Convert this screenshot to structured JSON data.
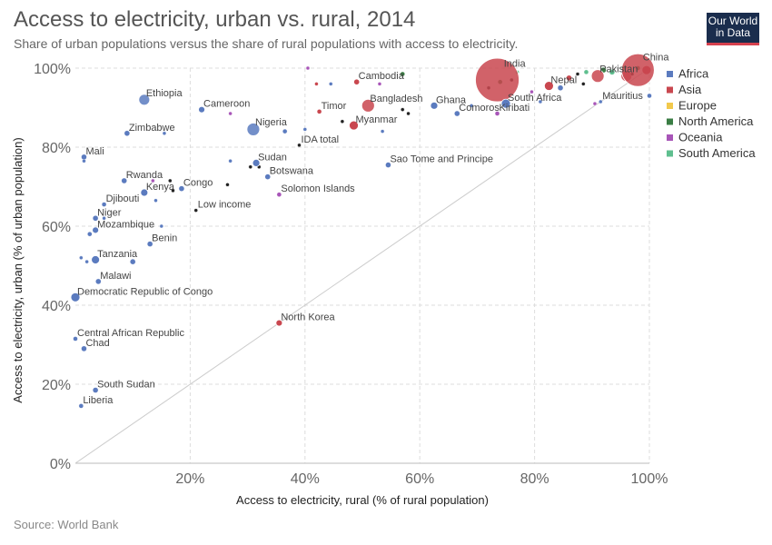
{
  "header": {
    "title": "Access to electricity, urban vs. rural, 2014",
    "subtitle": "Share of urban populations versus the share of rural populations with access to electricity.",
    "logo_line1": "Our World",
    "logo_line2": "in Data"
  },
  "footer": {
    "source": "Source: World Bank"
  },
  "colors": {
    "Africa": "#5b7bbf",
    "Asia": "#c9474f",
    "Europe": "#f2c94c",
    "North America": "#3a7d44",
    "Oceania": "#a855b8",
    "South America": "#5fbf8f",
    "aggregate": "#222222",
    "grid": "#dddddd",
    "diagonal": "#cccccc"
  },
  "chart_data": {
    "type": "scatter",
    "xlabel": "Access to electricity, rural (% of rural population)",
    "ylabel": "Access to electricity, urban (% of urban population)",
    "xlim": [
      0,
      100
    ],
    "ylim": [
      0,
      100
    ],
    "x_ticks": [
      "20%",
      "40%",
      "60%",
      "80%",
      "100%"
    ],
    "y_ticks": [
      "0%",
      "20%",
      "40%",
      "60%",
      "80%",
      "100%"
    ],
    "grid": true,
    "legend_position": "right",
    "legend": [
      "Africa",
      "Asia",
      "Europe",
      "North America",
      "Oceania",
      "South America"
    ],
    "points": [
      {
        "name": "Ethiopia",
        "region": "Africa",
        "x": 12,
        "y": 92,
        "r": 6
      },
      {
        "name": "Cameroon",
        "region": "Africa",
        "x": 22,
        "y": 89.5,
        "r": 3.5
      },
      {
        "name": "Zimbabwe",
        "region": "Africa",
        "x": 9,
        "y": 83.5,
        "r": 3
      },
      {
        "name": "Nigeria",
        "region": "Africa",
        "x": 31,
        "y": 84.5,
        "r": 7
      },
      {
        "name": "IDA total",
        "region": "aggregate",
        "x": 39,
        "y": 80.5,
        "r": 2
      },
      {
        "name": "Mali",
        "region": "Africa",
        "x": 1.5,
        "y": 77.5,
        "r": 3
      },
      {
        "name": "Sudan",
        "region": "Africa",
        "x": 31.5,
        "y": 76,
        "r": 4
      },
      {
        "name": "Botswana",
        "region": "Africa",
        "x": 33.5,
        "y": 72.5,
        "r": 3
      },
      {
        "name": "Rwanda",
        "region": "Africa",
        "x": 8.5,
        "y": 71.5,
        "r": 3
      },
      {
        "name": "Congo",
        "region": "Africa",
        "x": 18.5,
        "y": 69.5,
        "r": 3
      },
      {
        "name": "Kenya",
        "region": "Africa",
        "x": 12,
        "y": 68.5,
        "r": 4
      },
      {
        "name": "Solomon Islands",
        "region": "Oceania",
        "x": 35.5,
        "y": 68,
        "r": 2.5
      },
      {
        "name": "Djibouti",
        "region": "Africa",
        "x": 5,
        "y": 65.5,
        "r": 2.5
      },
      {
        "name": "Low income",
        "region": "aggregate",
        "x": 21,
        "y": 64,
        "r": 2
      },
      {
        "name": "Niger",
        "region": "Africa",
        "x": 3.5,
        "y": 62,
        "r": 3
      },
      {
        "name": "Mozambique",
        "region": "Africa",
        "x": 3.5,
        "y": 59,
        "r": 3.5
      },
      {
        "name": "Benin",
        "region": "Africa",
        "x": 13,
        "y": 55.5,
        "r": 3
      },
      {
        "name": "Tanzania",
        "region": "Africa",
        "x": 3.5,
        "y": 51.5,
        "r": 4.5
      },
      {
        "name": "Malawi",
        "region": "Africa",
        "x": 4,
        "y": 46,
        "r": 3
      },
      {
        "name": "Democratic Republic of Congo",
        "region": "Africa",
        "x": 0,
        "y": 42,
        "r": 5
      },
      {
        "name": "North Korea",
        "region": "Asia",
        "x": 35.5,
        "y": 35.5,
        "r": 3.5
      },
      {
        "name": "Central African Republic",
        "region": "Africa",
        "x": 0,
        "y": 31.5,
        "r": 2.5
      },
      {
        "name": "Chad",
        "region": "Africa",
        "x": 1.5,
        "y": 29,
        "r": 3
      },
      {
        "name": "South Sudan",
        "region": "Africa",
        "x": 3.5,
        "y": 18.5,
        "r": 3
      },
      {
        "name": "Liberia",
        "region": "Africa",
        "x": 1,
        "y": 14.5,
        "r": 2.5
      },
      {
        "name": "Cambodia",
        "region": "Asia",
        "x": 49,
        "y": 96.5,
        "r": 3
      },
      {
        "name": "Timor",
        "region": "Asia",
        "x": 42.5,
        "y": 89,
        "r": 2.5
      },
      {
        "name": "Bangladesh",
        "region": "Asia",
        "x": 51,
        "y": 90.5,
        "r": 7
      },
      {
        "name": "Myanmar",
        "region": "Asia",
        "x": 48.5,
        "y": 85.5,
        "r": 5
      },
      {
        "name": "Sao Tome and Principe",
        "region": "Africa",
        "x": 54.5,
        "y": 75.5,
        "r": 3
      },
      {
        "name": "Ghana",
        "region": "Africa",
        "x": 62.5,
        "y": 90.5,
        "r": 4
      },
      {
        "name": "Comoros",
        "region": "Africa",
        "x": 66.5,
        "y": 88.5,
        "r": 3
      },
      {
        "name": "Kiribati",
        "region": "Oceania",
        "x": 73.5,
        "y": 88.5,
        "r": 2.5
      },
      {
        "name": "India",
        "region": "Asia",
        "x": 73.5,
        "y": 97,
        "r": 24
      },
      {
        "name": "South Africa",
        "region": "Africa",
        "x": 75,
        "y": 91,
        "r": 5
      },
      {
        "name": "Nepal",
        "region": "Asia",
        "x": 82.5,
        "y": 95.5,
        "r": 5
      },
      {
        "name": "Pakistan",
        "region": "Asia",
        "x": 91,
        "y": 98,
        "r": 7
      },
      {
        "name": "China",
        "region": "Asia",
        "x": 98,
        "y": 99.5,
        "r": 18
      },
      {
        "name": "Mauritius",
        "region": "Africa",
        "x": 91.5,
        "y": 91.5,
        "r": 2
      }
    ],
    "extra_points": [
      {
        "region": "Oceania",
        "x": 40.5,
        "y": 100,
        "r": 2
      },
      {
        "region": "Asia",
        "x": 42,
        "y": 96,
        "r": 2
      },
      {
        "region": "Africa",
        "x": 44.5,
        "y": 96,
        "r": 2
      },
      {
        "region": "North America",
        "x": 57,
        "y": 98.5,
        "r": 2.5
      },
      {
        "region": "Oceania",
        "x": 53,
        "y": 96,
        "r": 2
      },
      {
        "region": "aggregate",
        "x": 46.5,
        "y": 86.5,
        "r": 2
      },
      {
        "region": "Africa",
        "x": 53.5,
        "y": 84,
        "r": 2
      },
      {
        "region": "aggregate",
        "x": 57,
        "y": 89.5,
        "r": 2
      },
      {
        "region": "aggregate",
        "x": 58,
        "y": 88.5,
        "r": 2
      },
      {
        "region": "Africa",
        "x": 36.5,
        "y": 84,
        "r": 2.5
      },
      {
        "region": "Africa",
        "x": 40,
        "y": 84.5,
        "r": 2
      },
      {
        "region": "Africa",
        "x": 15.5,
        "y": 83.5,
        "r": 2
      },
      {
        "region": "Oceania",
        "x": 27,
        "y": 88.5,
        "r": 2
      },
      {
        "region": "Africa",
        "x": 27,
        "y": 76.5,
        "r": 2
      },
      {
        "region": "aggregate",
        "x": 30.5,
        "y": 75,
        "r": 2
      },
      {
        "region": "aggregate",
        "x": 32,
        "y": 75,
        "r": 2
      },
      {
        "region": "aggregate",
        "x": 16.5,
        "y": 71.5,
        "r": 2
      },
      {
        "region": "aggregate",
        "x": 17,
        "y": 69,
        "r": 2
      },
      {
        "region": "aggregate",
        "x": 26.5,
        "y": 70.5,
        "r": 2
      },
      {
        "region": "Africa",
        "x": 14,
        "y": 66.5,
        "r": 2
      },
      {
        "region": "Oceania",
        "x": 13.5,
        "y": 71.5,
        "r": 2
      },
      {
        "region": "Africa",
        "x": 2.5,
        "y": 58,
        "r": 2.5
      },
      {
        "region": "Africa",
        "x": 1,
        "y": 52,
        "r": 2
      },
      {
        "region": "Africa",
        "x": 2,
        "y": 51,
        "r": 2
      },
      {
        "region": "Africa",
        "x": 10,
        "y": 51,
        "r": 3
      },
      {
        "region": "Africa",
        "x": 1.5,
        "y": 76.5,
        "r": 2
      },
      {
        "region": "Africa",
        "x": 5,
        "y": 62,
        "r": 2
      },
      {
        "region": "Africa",
        "x": 15,
        "y": 60,
        "r": 2
      },
      {
        "region": "Africa",
        "x": 69,
        "y": 90.5,
        "r": 2
      },
      {
        "region": "North America",
        "x": 74,
        "y": 96.5,
        "r": 2.5
      },
      {
        "region": "aggregate",
        "x": 72,
        "y": 95,
        "r": 2
      },
      {
        "region": "aggregate",
        "x": 76,
        "y": 97,
        "r": 2
      },
      {
        "region": "Africa",
        "x": 81,
        "y": 91.5,
        "r": 2
      },
      {
        "region": "Africa",
        "x": 84.5,
        "y": 95,
        "r": 3
      },
      {
        "region": "Oceania",
        "x": 79.5,
        "y": 94,
        "r": 2
      },
      {
        "region": "South America",
        "x": 77,
        "y": 99,
        "r": 2
      },
      {
        "region": "Asia",
        "x": 86,
        "y": 97.5,
        "r": 3
      },
      {
        "region": "aggregate",
        "x": 87.5,
        "y": 98.5,
        "r": 2
      },
      {
        "region": "South America",
        "x": 89,
        "y": 99,
        "r": 2.5
      },
      {
        "region": "North America",
        "x": 92,
        "y": 99.5,
        "r": 3
      },
      {
        "region": "South America",
        "x": 93.5,
        "y": 99,
        "r": 3
      },
      {
        "region": "South America",
        "x": 95.5,
        "y": 100,
        "r": 3
      },
      {
        "region": "Asia",
        "x": 96,
        "y": 98,
        "r": 6
      },
      {
        "region": "aggregate",
        "x": 97,
        "y": 98.5,
        "r": 2
      },
      {
        "region": "Asia",
        "x": 99.5,
        "y": 99.5,
        "r": 5
      },
      {
        "region": "Africa",
        "x": 100,
        "y": 93,
        "r": 2.5
      },
      {
        "region": "aggregate",
        "x": 88.5,
        "y": 96,
        "r": 2
      },
      {
        "region": "Oceania",
        "x": 90.5,
        "y": 91,
        "r": 2
      },
      {
        "region": "North America",
        "x": 98,
        "y": 100,
        "r": 2.5
      }
    ]
  }
}
